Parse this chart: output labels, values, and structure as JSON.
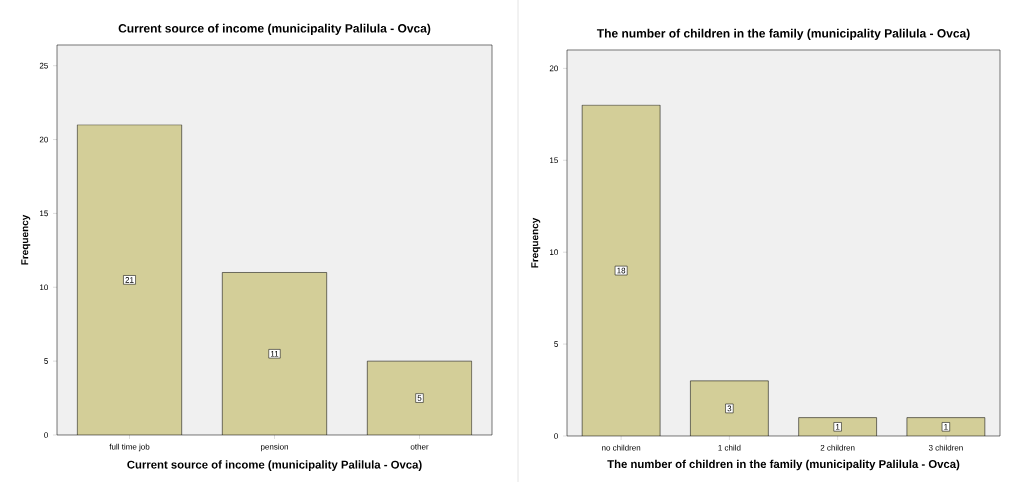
{
  "chart_data": [
    {
      "type": "bar",
      "title": "Current source of income (municipality Palilula - Ovca)",
      "xlabel": "Current source of income (municipality Palilula - Ovca)",
      "ylabel": "Frequency",
      "categories": [
        "full time job",
        "pension",
        "other"
      ],
      "values": [
        21,
        11,
        5
      ],
      "color": "#d3ce98",
      "ylim": [
        0,
        26.4
      ],
      "yticks": [
        0,
        5,
        10,
        15,
        20,
        25
      ],
      "data_labels": true,
      "grid": false
    },
    {
      "type": "bar",
      "title": "The number of children in the family (municipality Palilula - Ovca)",
      "xlabel": "The number of children in the family (municipality Palilula - Ovca)",
      "ylabel": "Frequency",
      "categories": [
        "no children",
        "1 child",
        "2 children",
        "3 children"
      ],
      "values": [
        18,
        3,
        1,
        1
      ],
      "color": "#d3ce98",
      "ylim": [
        0,
        21
      ],
      "yticks": [
        0,
        5,
        10,
        15,
        20
      ],
      "data_labels": true,
      "grid": false
    }
  ]
}
